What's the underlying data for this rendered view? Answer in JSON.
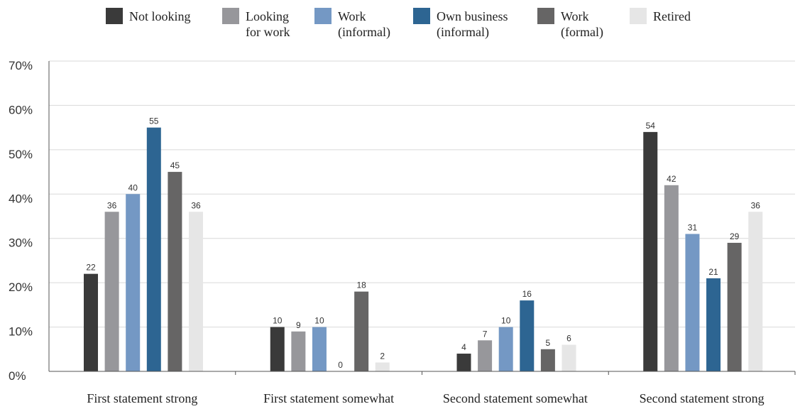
{
  "chart_data": {
    "type": "bar",
    "categories": [
      "First statement strong",
      "First statement somewhat",
      "Second statement somewhat",
      "Second statement strong"
    ],
    "series": [
      {
        "name_lines": [
          "Not looking"
        ],
        "color": "#3a3a3a",
        "values": [
          22,
          10,
          4,
          54
        ]
      },
      {
        "name_lines": [
          "Looking",
          "for work"
        ],
        "color": "#97979b",
        "values": [
          36,
          9,
          7,
          42
        ]
      },
      {
        "name_lines": [
          "Work",
          "(informal)"
        ],
        "color": "#7498c4",
        "values": [
          40,
          10,
          10,
          31
        ]
      },
      {
        "name_lines": [
          "Own business",
          "(informal)"
        ],
        "color": "#2d6592",
        "values": [
          55,
          0,
          16,
          21
        ]
      },
      {
        "name_lines": [
          "Work",
          "(formal)"
        ],
        "color": "#666565",
        "values": [
          45,
          18,
          5,
          29
        ]
      },
      {
        "name_lines": [
          "Retired"
        ],
        "color": "#e6e6e6",
        "values": [
          36,
          2,
          6,
          36
        ]
      }
    ],
    "y_ticks": [
      "0%",
      "10%",
      "20%",
      "30%",
      "40%",
      "50%",
      "60%",
      "70%"
    ],
    "ylim": [
      0,
      70
    ],
    "grid": true,
    "legend_position": "top"
  }
}
